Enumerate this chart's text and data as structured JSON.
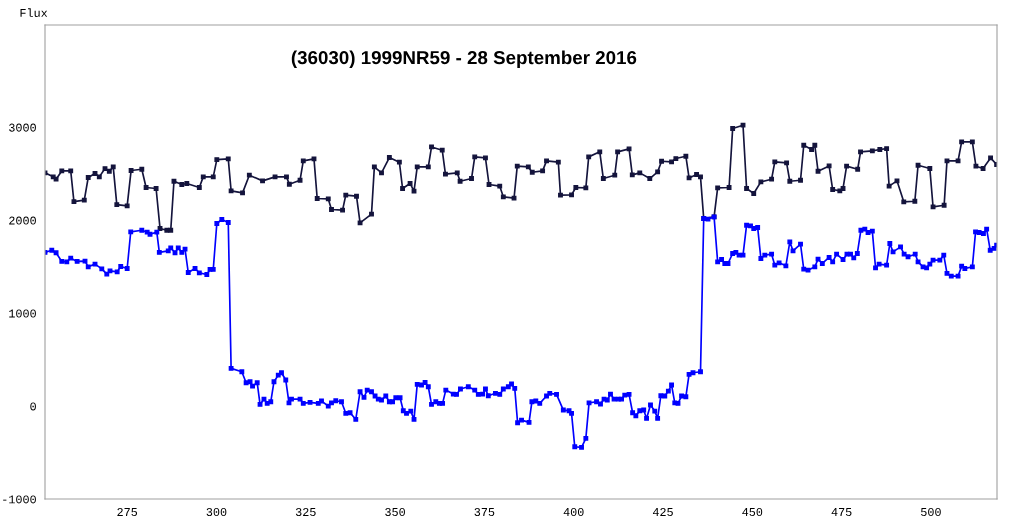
{
  "chart_data": {
    "type": "line",
    "title": "(36030) 1999NR59 - 28 September 2016",
    "ylabel": "Flux",
    "xlim": [
      252,
      518.5
    ],
    "ylim": [
      -1000,
      4100
    ],
    "xticks": [
      275,
      300,
      325,
      350,
      375,
      400,
      425,
      450,
      475,
      500
    ],
    "yticks": [
      -1000,
      0,
      1000,
      2000,
      3000
    ],
    "grid": false,
    "legend": false,
    "marker": "square",
    "line_style": "solid",
    "series": [
      {
        "color": "#14143c",
        "x": [
          252,
          254.3,
          255.1,
          256.7,
          259.2,
          260.1,
          263,
          264.1,
          266,
          267.2,
          268.8,
          270,
          271.1,
          272.1,
          275,
          276.1,
          279.1,
          280.3,
          283.1,
          284.2,
          286.1,
          287.2,
          288.1,
          290.3,
          291.7,
          295.2,
          296.3,
          299.1,
          300.1,
          303.3,
          304.1,
          307.3,
          309.2,
          312.9,
          316.4,
          319.6,
          320.4,
          323.4,
          324.3,
          327.3,
          328.2,
          331.3,
          332.2,
          335.3,
          336.2,
          339.2,
          340.2,
          343.4,
          344.2,
          346.2,
          348.4,
          351.2,
          352.1,
          354.2,
          355.3,
          356.2,
          359.3,
          360.2,
          363.2,
          364.1,
          367.4,
          368.2,
          371.4,
          372.3,
          375.3,
          376.3,
          379.3,
          380.3,
          383.3,
          384.2,
          387.3,
          388.4,
          391.3,
          392.4,
          395.7,
          396.3,
          399.4,
          400.6,
          403.4,
          404.2,
          407.3,
          408.3,
          411.5,
          412.3,
          415.5,
          416.4,
          418.5,
          421.3,
          423.5,
          424.6,
          427.4,
          428.6,
          431.4,
          432.3,
          434.4,
          435.5,
          436.4,
          439.3,
          440.3,
          443.5,
          444.5,
          447.4,
          448.4,
          450.4,
          452.4,
          455.4,
          456.3,
          459.6,
          460.5,
          463.5,
          464.4,
          466.6,
          467.5,
          468.4,
          471.5,
          472.5,
          474.5,
          475.4,
          476.4,
          479.5,
          480.3,
          483.6,
          485.7,
          487.6,
          488.3,
          490.5,
          492.4,
          495.5,
          496.4,
          499.7,
          500.6,
          503.7,
          504.5,
          507.6,
          508.6,
          511.6,
          512.6,
          514.6,
          516.7,
          518.4
        ],
        "values": [
          2509,
          2466,
          2441,
          2530,
          2530,
          2200,
          2215,
          2459,
          2502,
          2466,
          2555,
          2527,
          2573,
          2168,
          2154,
          2534,
          2548,
          2352,
          2341,
          1911,
          1892,
          1892,
          2419,
          2384,
          2395,
          2352,
          2466,
          2466,
          2652,
          2659,
          2315,
          2294,
          2484,
          2423,
          2466,
          2466,
          2387,
          2430,
          2638,
          2659,
          2233,
          2229,
          2115,
          2108,
          2269,
          2258,
          1971,
          2065,
          2573,
          2509,
          2674,
          2624,
          2341,
          2395,
          2312,
          2573,
          2573,
          2788,
          2753,
          2495,
          2509,
          2419,
          2448,
          2681,
          2670,
          2384,
          2366,
          2251,
          2237,
          2581,
          2573,
          2516,
          2530,
          2638,
          2624,
          2269,
          2272,
          2352,
          2347,
          2681,
          2735,
          2448,
          2484,
          2735,
          2767,
          2488,
          2509,
          2448,
          2520,
          2634,
          2627,
          2663,
          2688,
          2455,
          2491,
          2466,
          2018,
          2036,
          2347,
          2352,
          2986,
          3022,
          2341,
          2287,
          2412,
          2441,
          2627,
          2616,
          2419,
          2430,
          2806,
          2760,
          2806,
          2527,
          2584,
          2330,
          2315,
          2341,
          2581,
          2548,
          2735,
          2745,
          2760,
          2770,
          2366,
          2423,
          2197,
          2204,
          2591,
          2556,
          2143,
          2161,
          2638,
          2638,
          2842,
          2842,
          2581,
          2556,
          2670,
          2599
        ]
      },
      {
        "color": "#0000ff",
        "x": [
          252,
          253.9,
          255.1,
          256.7,
          258.1,
          259.2,
          261,
          263.2,
          264.1,
          266,
          267.9,
          269.3,
          270.2,
          272.2,
          273.2,
          275,
          276,
          279.1,
          280.6,
          281.4,
          283.3,
          284,
          286.5,
          287.2,
          288.4,
          289.3,
          290.3,
          291.2,
          292.1,
          294,
          295.2,
          297.3,
          298.2,
          299.1,
          300.1,
          301.5,
          303.3,
          304.1,
          307.1,
          308.3,
          309.4,
          310.1,
          311.4,
          312.2,
          313.3,
          314.2,
          315.2,
          316.1,
          317.3,
          318.2,
          319.4,
          320.3,
          321,
          323.4,
          324.3,
          326.2,
          328.5,
          329.4,
          331.3,
          332.2,
          333.4,
          335,
          336.2,
          337.4,
          339,
          340.2,
          341.3,
          342.2,
          343.4,
          344.4,
          345.3,
          346.2,
          347.4,
          348.4,
          349.3,
          350.2,
          351.4,
          352.3,
          353.2,
          354.4,
          355.3,
          356.2,
          357.4,
          358.4,
          359.3,
          360.2,
          361.4,
          362.4,
          363.3,
          364.2,
          366.3,
          367.2,
          368.3,
          370.5,
          372.3,
          373.3,
          374.5,
          375.3,
          376.1,
          378.1,
          379.3,
          380.3,
          381.7,
          382.6,
          383.5,
          384.3,
          385.4,
          387.5,
          388.3,
          389.4,
          390.5,
          392.4,
          393.3,
          395.2,
          397.1,
          398.7,
          399.4,
          400.3,
          402.2,
          403.4,
          404.3,
          406.4,
          407.5,
          408.5,
          409.4,
          410.3,
          411.3,
          412.5,
          413.4,
          414.3,
          415.5,
          416.5,
          417.4,
          418.5,
          419.6,
          420.4,
          421.5,
          422.7,
          423.5,
          424.4,
          425.5,
          426.5,
          427.4,
          428.3,
          429.2,
          430.2,
          431.4,
          432.3,
          433.4,
          435.5,
          436.4,
          437.6,
          439.3,
          440.3,
          441.4,
          442.3,
          443.2,
          444.5,
          445.4,
          446.3,
          447.4,
          448.4,
          449.5,
          450.4,
          451.5,
          452.4,
          453.5,
          455.4,
          456.3,
          457.5,
          459.4,
          460.5,
          461.4,
          463.5,
          464.4,
          465.6,
          467.5,
          468.4,
          469.6,
          471.5,
          472.5,
          473.6,
          475.4,
          476.5,
          477.5,
          478.4,
          479.4,
          480.4,
          481.5,
          482.4,
          483.6,
          484.5,
          485.5,
          487.6,
          488.5,
          489.4,
          491.5,
          492.5,
          493.6,
          495.6,
          496.4,
          497.8,
          498.8,
          499.7,
          500.6,
          502.5,
          503.6,
          504.5,
          505.7,
          507.6,
          508.6,
          509.5,
          511.6,
          512.5,
          513.5,
          514.7,
          515.6,
          516.6,
          517.7,
          518.4
        ],
        "values": [
          1653,
          1677,
          1649,
          1556,
          1552,
          1591,
          1556,
          1559,
          1498,
          1527,
          1476,
          1419,
          1455,
          1444,
          1502,
          1480,
          1874,
          1892,
          1871,
          1849,
          1871,
          1653,
          1670,
          1702,
          1649,
          1702,
          1653,
          1688,
          1437,
          1480,
          1433,
          1416,
          1470,
          1470,
          1964,
          2007,
          1975,
          405,
          369,
          251,
          262,
          215,
          251,
          18,
          75,
          29,
          46,
          262,
          333,
          358,
          280,
          35,
          75,
          75,
          29,
          40,
          29,
          54,
          0,
          35,
          57,
          46,
          -78,
          -72,
          -143,
          154,
          94,
          172,
          154,
          108,
          75,
          65,
          108,
          46,
          46,
          89,
          89,
          -51,
          -78,
          -54,
          -143,
          233,
          226,
          254,
          208,
          18,
          46,
          29,
          29,
          172,
          129,
          125,
          183,
          208,
          172,
          125,
          129,
          183,
          111,
          137,
          125,
          183,
          208,
          237,
          190,
          -179,
          -151,
          -176,
          46,
          54,
          29,
          108,
          137,
          125,
          -43,
          -51,
          -78,
          -438,
          -444,
          -347,
          35,
          46,
          22,
          75,
          65,
          129,
          75,
          75,
          75,
          118,
          125,
          -72,
          -104,
          -51,
          -43,
          -133,
          11,
          -54,
          -133,
          111,
          108,
          161,
          226,
          35,
          29,
          108,
          100,
          341,
          358,
          369,
          2018,
          2011,
          2036,
          1552,
          1577,
          1534,
          1534,
          1642,
          1653,
          1624,
          1624,
          1946,
          1939,
          1911,
          1921,
          1588,
          1624,
          1634,
          1516,
          1541,
          1509,
          1767,
          1670,
          1742,
          1473,
          1462,
          1498,
          1581,
          1534,
          1599,
          1552,
          1634,
          1577,
          1634,
          1634,
          1595,
          1642,
          1892,
          1903,
          1867,
          1882,
          1487,
          1527,
          1516,
          1749,
          1659,
          1713,
          1634,
          1606,
          1634,
          1552,
          1498,
          1487,
          1527,
          1570,
          1570,
          1624,
          1427,
          1398,
          1398,
          1505,
          1480,
          1498,
          1874,
          1867,
          1857,
          1903,
          1677,
          1696,
          1731
        ]
      }
    ]
  }
}
